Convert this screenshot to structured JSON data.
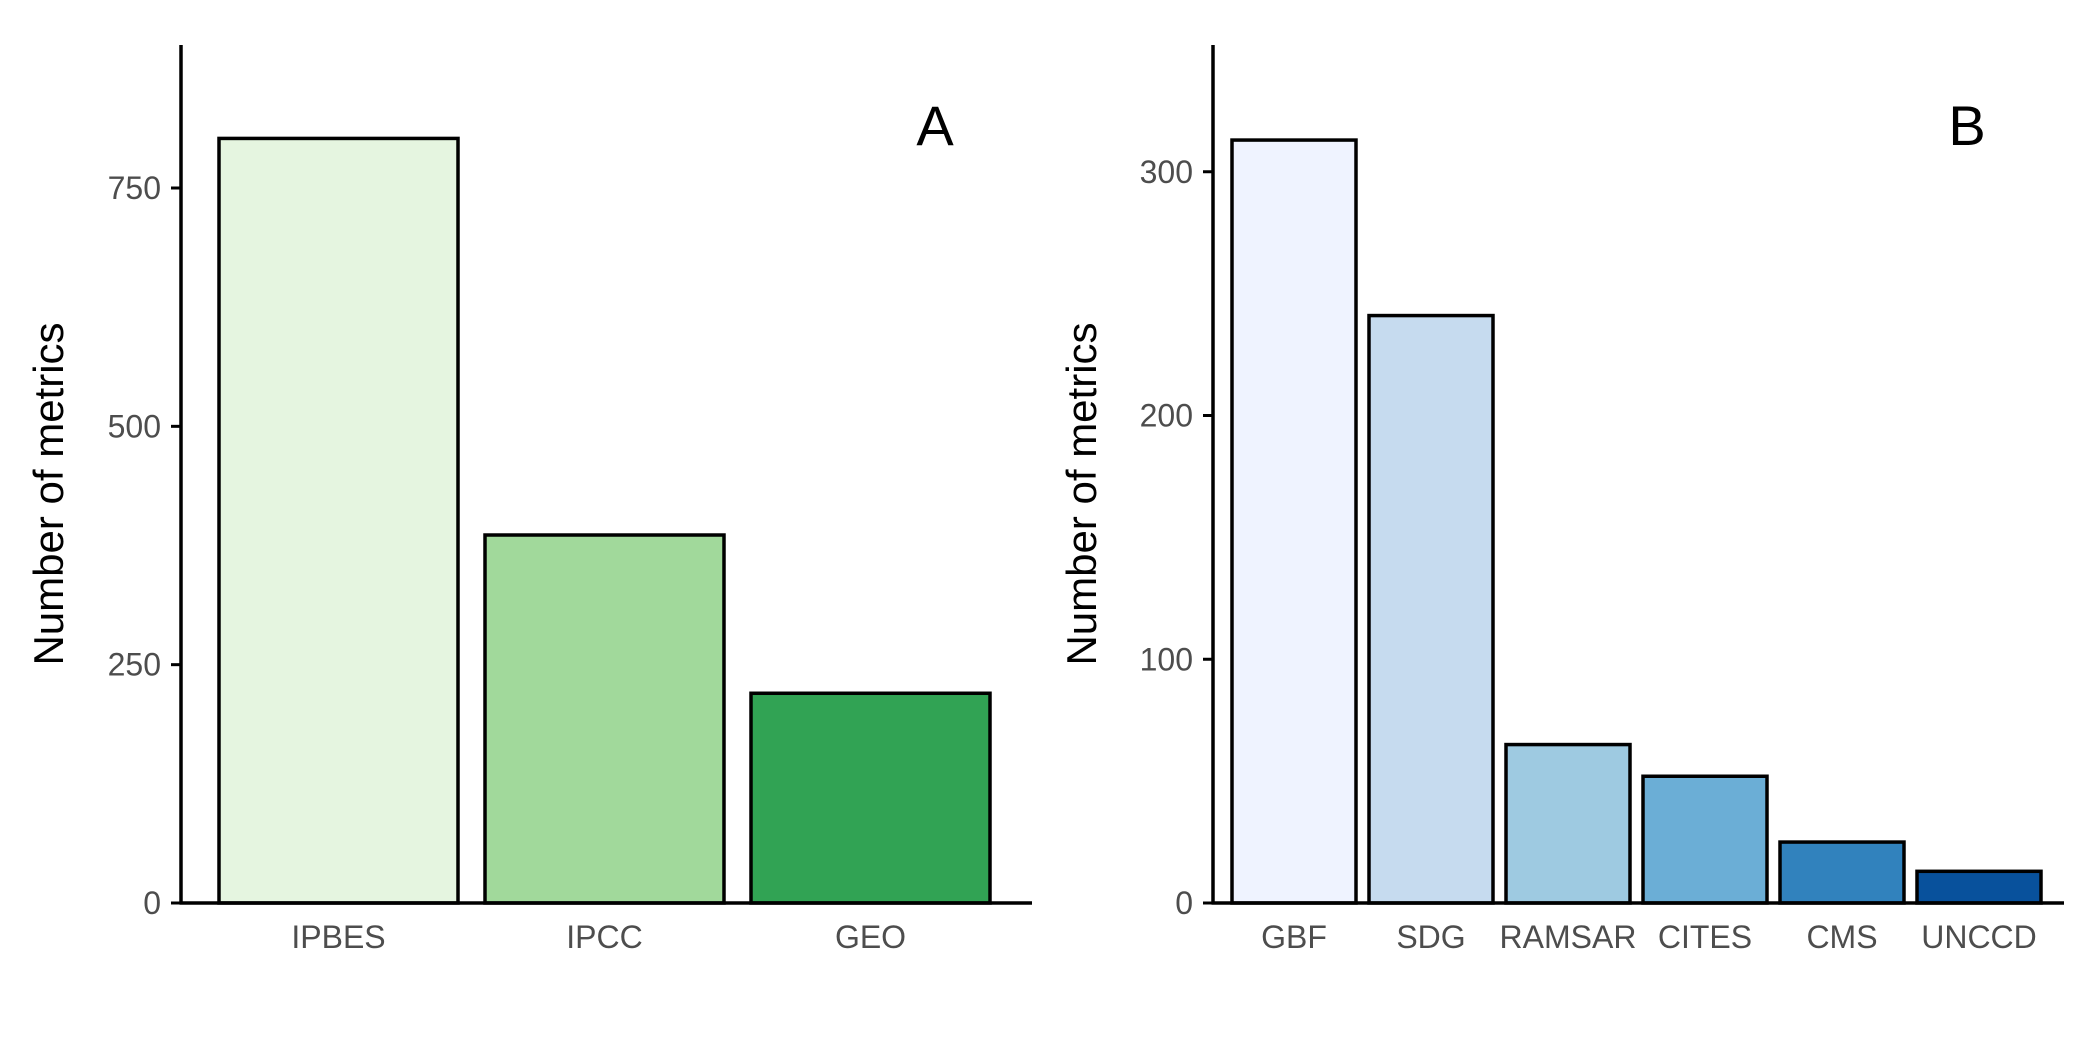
{
  "chart_data": [
    {
      "type": "bar",
      "panel_label": "A",
      "xlabel": "",
      "ylabel": "Number of metrics",
      "ylim": [
        0,
        900
      ],
      "yticks": [
        0,
        250,
        500,
        750
      ],
      "categories": [
        "IPBES",
        "IPCC",
        "GEO"
      ],
      "values": [
        802,
        386,
        220
      ],
      "colors": [
        "#e5f5e0",
        "#a1d99b",
        "#31a354"
      ],
      "grid": false,
      "legend": "none"
    },
    {
      "type": "bar",
      "panel_label": "B",
      "xlabel": "",
      "ylabel": "Number of metrics",
      "ylim": [
        0,
        352
      ],
      "yticks": [
        0,
        100,
        200,
        300
      ],
      "categories": [
        "GBF",
        "SDG",
        "RAMSAR",
        "CITES",
        "CMS",
        "UNCCD"
      ],
      "values": [
        313,
        241,
        65,
        52,
        25,
        13
      ],
      "colors": [
        "#eff3ff",
        "#c6dbef",
        "#9ecae1",
        "#6baed6",
        "#3182bd",
        "#08519c"
      ],
      "grid": false,
      "legend": "none"
    }
  ]
}
